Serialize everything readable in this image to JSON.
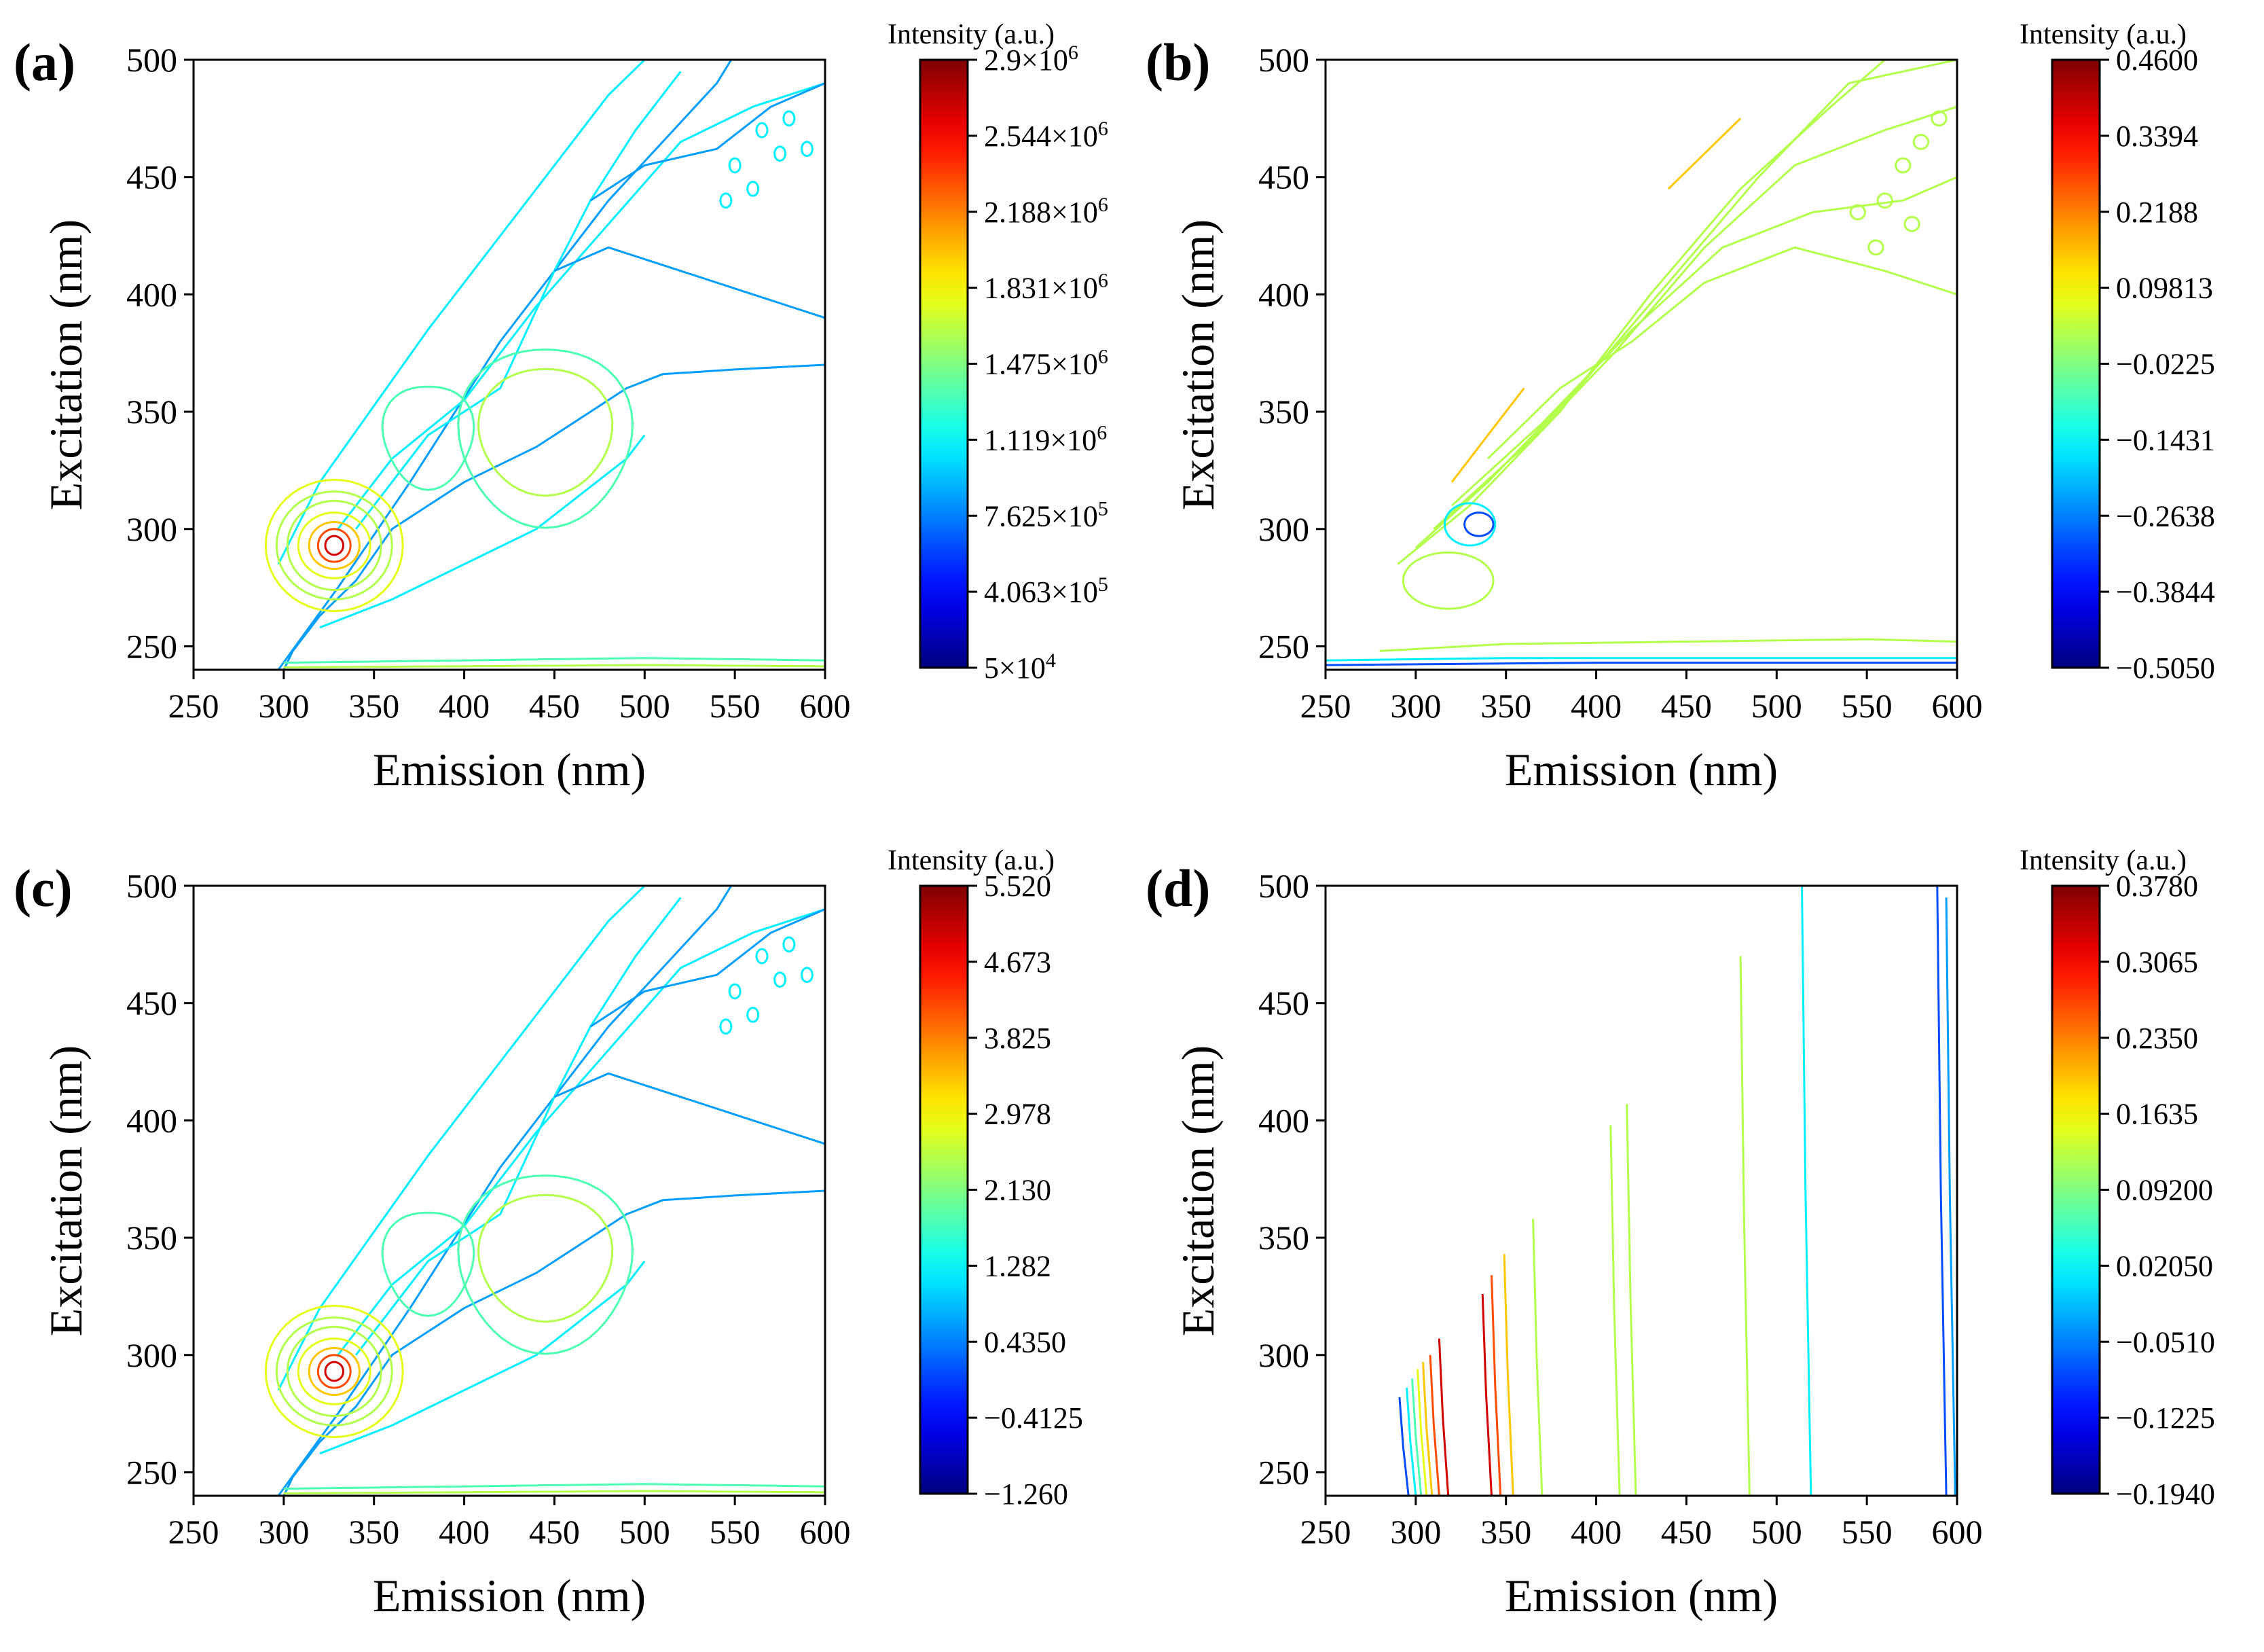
{
  "chart_data": [
    {
      "type": "contour",
      "panel_label": "(a)",
      "xlabel": "Emission (nm)",
      "ylabel": "Excitation (nm)",
      "xlim": [
        250,
        600
      ],
      "ylim": [
        240,
        500
      ],
      "xticks": [
        "250",
        "300",
        "350",
        "400",
        "450",
        "500",
        "550",
        "600"
      ],
      "yticks": [
        "250",
        "300",
        "350",
        "400",
        "450",
        "500"
      ],
      "colorbar": {
        "title": "Intensity (a.u.)",
        "labels": [
          {
            "m": "2.9",
            "e": "6"
          },
          {
            "m": "2.544",
            "e": "6"
          },
          {
            "m": "2.188",
            "e": "6"
          },
          {
            "m": "1.831",
            "e": "6"
          },
          {
            "m": "1.475",
            "e": "6"
          },
          {
            "m": "1.119",
            "e": "6"
          },
          {
            "m": "7.625",
            "e": "5"
          },
          {
            "m": "4.063",
            "e": "5"
          },
          {
            "m": "5",
            "e": "4"
          }
        ]
      },
      "peaks": [
        {
          "emission": 328,
          "excitation": 292,
          "level": "max"
        },
        {
          "emission": 445,
          "excitation": 340,
          "level": "mid"
        }
      ]
    },
    {
      "type": "contour",
      "panel_label": "(b)",
      "xlabel": "Emission (nm)",
      "ylabel": "Excitation (nm)",
      "xlim": [
        250,
        600
      ],
      "ylim": [
        240,
        500
      ],
      "xticks": [
        "250",
        "300",
        "350",
        "400",
        "450",
        "500",
        "550",
        "600"
      ],
      "yticks": [
        "250",
        "300",
        "350",
        "400",
        "450",
        "500"
      ],
      "colorbar": {
        "title": "Intensity (a.u.)",
        "labels": [
          {
            "m": "0.4600"
          },
          {
            "m": "0.3394"
          },
          {
            "m": "0.2188"
          },
          {
            "m": "0.09813"
          },
          {
            "m": "-0.0225"
          },
          {
            "m": "-0.1431"
          },
          {
            "m": "-0.2638"
          },
          {
            "m": "-0.3844"
          },
          {
            "m": "-0.5050"
          }
        ]
      }
    },
    {
      "type": "contour",
      "panel_label": "(c)",
      "xlabel": "Emission (nm)",
      "ylabel": "Excitation (nm)",
      "xlim": [
        250,
        600
      ],
      "ylim": [
        240,
        500
      ],
      "xticks": [
        "250",
        "300",
        "350",
        "400",
        "450",
        "500",
        "550",
        "600"
      ],
      "yticks": [
        "250",
        "300",
        "350",
        "400",
        "450",
        "500"
      ],
      "colorbar": {
        "title": "Intensity (a.u.)",
        "labels": [
          {
            "m": "5.520"
          },
          {
            "m": "4.673"
          },
          {
            "m": "3.825"
          },
          {
            "m": "2.978"
          },
          {
            "m": "2.130"
          },
          {
            "m": "1.282"
          },
          {
            "m": "0.4350"
          },
          {
            "m": "-0.4125"
          },
          {
            "m": "-1.260"
          }
        ]
      },
      "peaks": [
        {
          "emission": 328,
          "excitation": 292,
          "level": "max"
        },
        {
          "emission": 445,
          "excitation": 340,
          "level": "mid"
        }
      ]
    },
    {
      "type": "contour",
      "panel_label": "(d)",
      "xlabel": "Emission (nm)",
      "ylabel": "Excitation (nm)",
      "xlim": [
        250,
        600
      ],
      "ylim": [
        240,
        500
      ],
      "xticks": [
        "250",
        "300",
        "350",
        "400",
        "450",
        "500",
        "550",
        "600"
      ],
      "yticks": [
        "250",
        "300",
        "350",
        "400",
        "450",
        "500"
      ],
      "colorbar": {
        "title": "Intensity (a.u.)",
        "labels": [
          {
            "m": "0.3780"
          },
          {
            "m": "0.3065"
          },
          {
            "m": "0.2350"
          },
          {
            "m": "0.1635"
          },
          {
            "m": "0.09200"
          },
          {
            "m": "0.02050"
          },
          {
            "m": "-0.0510"
          },
          {
            "m": "-0.1225"
          },
          {
            "m": "-0.1940"
          }
        ]
      }
    }
  ]
}
